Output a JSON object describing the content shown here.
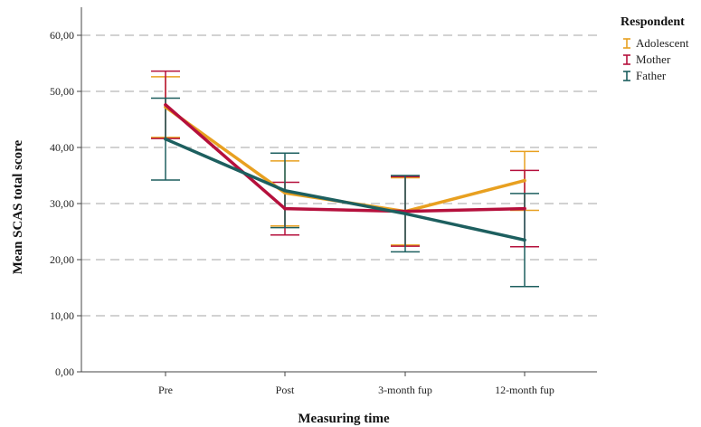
{
  "chart_data": {
    "type": "line",
    "title": "",
    "xlabel": "Measuring time",
    "ylabel": "Mean SCAS total score",
    "categories": [
      "Pre",
      "Post",
      "3-month fup",
      "12-month fup"
    ],
    "ylim": [
      0,
      65
    ],
    "yticks": [
      "0,00",
      "10,00",
      "20,00",
      "30,00",
      "40,00",
      "50,00",
      "60,00"
    ],
    "ytick_values": [
      0,
      10,
      20,
      30,
      40,
      50,
      60
    ],
    "grid": "horizontal dashed",
    "legend_position": "top-right",
    "legend_title": "Respondent",
    "error_bars": true,
    "series": [
      {
        "name": "Adolescent",
        "color": "#E8A020",
        "values": [
          47.2,
          31.9,
          28.6,
          34.1
        ],
        "lower": [
          41.8,
          26.0,
          22.6,
          28.8
        ],
        "upper": [
          52.6,
          37.6,
          34.6,
          39.3
        ]
      },
      {
        "name": "Mother",
        "color": "#B5103C",
        "values": [
          47.6,
          29.1,
          28.6,
          29.1
        ],
        "lower": [
          41.6,
          24.4,
          22.4,
          22.3
        ],
        "upper": [
          53.6,
          33.8,
          34.8,
          35.9
        ]
      },
      {
        "name": "Father",
        "color": "#1D5F5F",
        "values": [
          41.5,
          32.3,
          28.2,
          23.5
        ],
        "lower": [
          34.2,
          25.7,
          21.4,
          15.2
        ],
        "upper": [
          48.8,
          39.0,
          35.0,
          31.8
        ]
      }
    ]
  }
}
